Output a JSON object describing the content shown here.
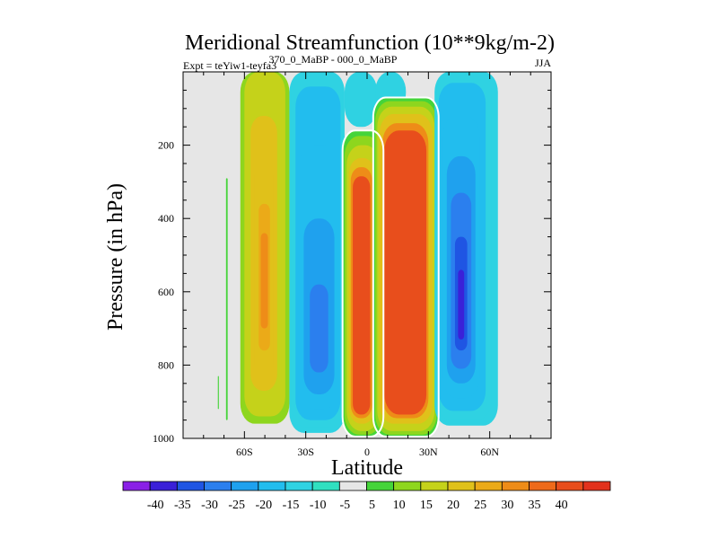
{
  "chart_data": {
    "type": "heatmap",
    "subtype": "filled-contour",
    "title": "Meridional Streamfunction (10**9kg/m-2)",
    "subtitle_left": "Expt = teYiw1-teyfa3",
    "subtitle_center": "370_0_MaBP - 000_0_MaBP",
    "subtitle_right": "JJA",
    "xlabel": "Latitude",
    "ylabel": "Pressure (in hPa)",
    "xlim": [
      -90,
      90
    ],
    "ylim": [
      1000,
      0
    ],
    "x_ticks": [
      {
        "value": -60,
        "label": "60S"
      },
      {
        "value": -30,
        "label": "30S"
      },
      {
        "value": 0,
        "label": "0"
      },
      {
        "value": 30,
        "label": "30N"
      },
      {
        "value": 60,
        "label": "60N"
      }
    ],
    "y_ticks": [
      {
        "value": 200,
        "label": "200"
      },
      {
        "value": 400,
        "label": "400"
      },
      {
        "value": 600,
        "label": "600"
      },
      {
        "value": 800,
        "label": "800"
      },
      {
        "value": 1000,
        "label": "1000"
      }
    ],
    "missing_color": "#e6e6e6",
    "colorbar": {
      "colors": [
        "#8a20e6",
        "#3a20d8",
        "#1f55e3",
        "#2b7fee",
        "#1fa1ee",
        "#22bdee",
        "#2fd2e2",
        "#30e0c0",
        "#e6e6e6",
        "#45d43a",
        "#8ed61e",
        "#c5d21a",
        "#e0c11a",
        "#ebaa18",
        "#ee8c18",
        "#ee6a1a",
        "#e84e1c",
        "#e2321c"
      ],
      "labels": [
        "-40",
        "-35",
        "-30",
        "-25",
        "-20",
        "-15",
        "-10",
        "-5",
        "5",
        "10",
        "15",
        "20",
        "25",
        "30",
        "35",
        "40"
      ]
    },
    "cells": [
      {
        "x0": -73,
        "x1": -72.5,
        "p0": 830,
        "p1": 920,
        "v": 9
      },
      {
        "x0": -69,
        "x1": -68.2,
        "p0": 290,
        "p1": 950,
        "v": 9
      },
      {
        "x0": -62,
        "x1": -38,
        "p0": 0,
        "p1": 960,
        "v": 12
      },
      {
        "x0": -60,
        "x1": -40,
        "p0": 0,
        "p1": 940,
        "v": 15
      },
      {
        "x0": -58,
        "x1": -42,
        "p0": 0,
        "p1": 900,
        "v": 18
      },
      {
        "x0": -57,
        "x1": -44,
        "p0": 120,
        "p1": 870,
        "v": 21
      },
      {
        "x0": -55,
        "x1": -46,
        "p0": 250,
        "p1": 830,
        "v": 24
      },
      {
        "x0": -53,
        "x1": -47.5,
        "p0": 360,
        "p1": 760,
        "v": 27
      },
      {
        "x0": -52,
        "x1": -48.5,
        "p0": 440,
        "p1": 700,
        "v": 30
      },
      {
        "x0": -38,
        "x1": -11,
        "p0": 0,
        "p1": 985,
        "v": -6
      },
      {
        "x0": -37,
        "x1": -12,
        "p0": 0,
        "p1": 970,
        "v": -9
      },
      {
        "x0": -35,
        "x1": -13,
        "p0": 40,
        "p1": 950,
        "v": -12
      },
      {
        "x0": -33,
        "x1": -14,
        "p0": 200,
        "p1": 920,
        "v": -15
      },
      {
        "x0": -31,
        "x1": -16,
        "p0": 400,
        "p1": 880,
        "v": -18
      },
      {
        "x0": -28,
        "x1": -19,
        "p0": 580,
        "p1": 820,
        "v": -21
      },
      {
        "x0": -11,
        "x1": 5,
        "p0": 0,
        "p1": 150,
        "v": -8
      },
      {
        "x0": 4,
        "x1": 19,
        "p0": 0,
        "p1": 110,
        "v": -7
      },
      {
        "x0": 4,
        "x1": 8,
        "p0": 140,
        "p1": 195,
        "v": -14
      },
      {
        "x0": -12,
        "x1": 8,
        "p0": 160,
        "p1": 995,
        "v": 7
      },
      {
        "x0": -11,
        "x1": 7,
        "p0": 175,
        "p1": 990,
        "v": 12
      },
      {
        "x0": -10,
        "x1": 6,
        "p0": 200,
        "p1": 980,
        "v": 17
      },
      {
        "x0": -9,
        "x1": 4,
        "p0": 235,
        "p1": 960,
        "v": 22
      },
      {
        "x0": -8,
        "x1": 2.5,
        "p0": 260,
        "p1": 945,
        "v": 32
      },
      {
        "x0": -7,
        "x1": 1.5,
        "p0": 285,
        "p1": 935,
        "v": 42
      },
      {
        "x0": 3,
        "x1": 35,
        "p0": 70,
        "p1": 995,
        "v": 7
      },
      {
        "x0": 4,
        "x1": 34,
        "p0": 80,
        "p1": 990,
        "v": 12
      },
      {
        "x0": 5,
        "x1": 33,
        "p0": 95,
        "p1": 980,
        "v": 17
      },
      {
        "x0": 6,
        "x1": 32,
        "p0": 115,
        "p1": 960,
        "v": 22
      },
      {
        "x0": 7.5,
        "x1": 30,
        "p0": 140,
        "p1": 945,
        "v": 32
      },
      {
        "x0": 8.5,
        "x1": 29,
        "p0": 160,
        "p1": 935,
        "v": 42
      },
      {
        "x0": 33,
        "x1": 64,
        "p0": 0,
        "p1": 965,
        "v": -6
      },
      {
        "x0": 34,
        "x1": 61,
        "p0": 0,
        "p1": 950,
        "v": -9
      },
      {
        "x0": 35,
        "x1": 58,
        "p0": 30,
        "p1": 925,
        "v": -12
      },
      {
        "x0": 37,
        "x1": 55,
        "p0": 120,
        "p1": 890,
        "v": -15
      },
      {
        "x0": 39,
        "x1": 53,
        "p0": 230,
        "p1": 850,
        "v": -18
      },
      {
        "x0": 41,
        "x1": 51,
        "p0": 330,
        "p1": 810,
        "v": -22
      },
      {
        "x0": 43,
        "x1": 49,
        "p0": 450,
        "p1": 760,
        "v": -26
      },
      {
        "x0": 44.5,
        "x1": 47.5,
        "p0": 540,
        "p1": 730,
        "v": -31
      }
    ]
  }
}
